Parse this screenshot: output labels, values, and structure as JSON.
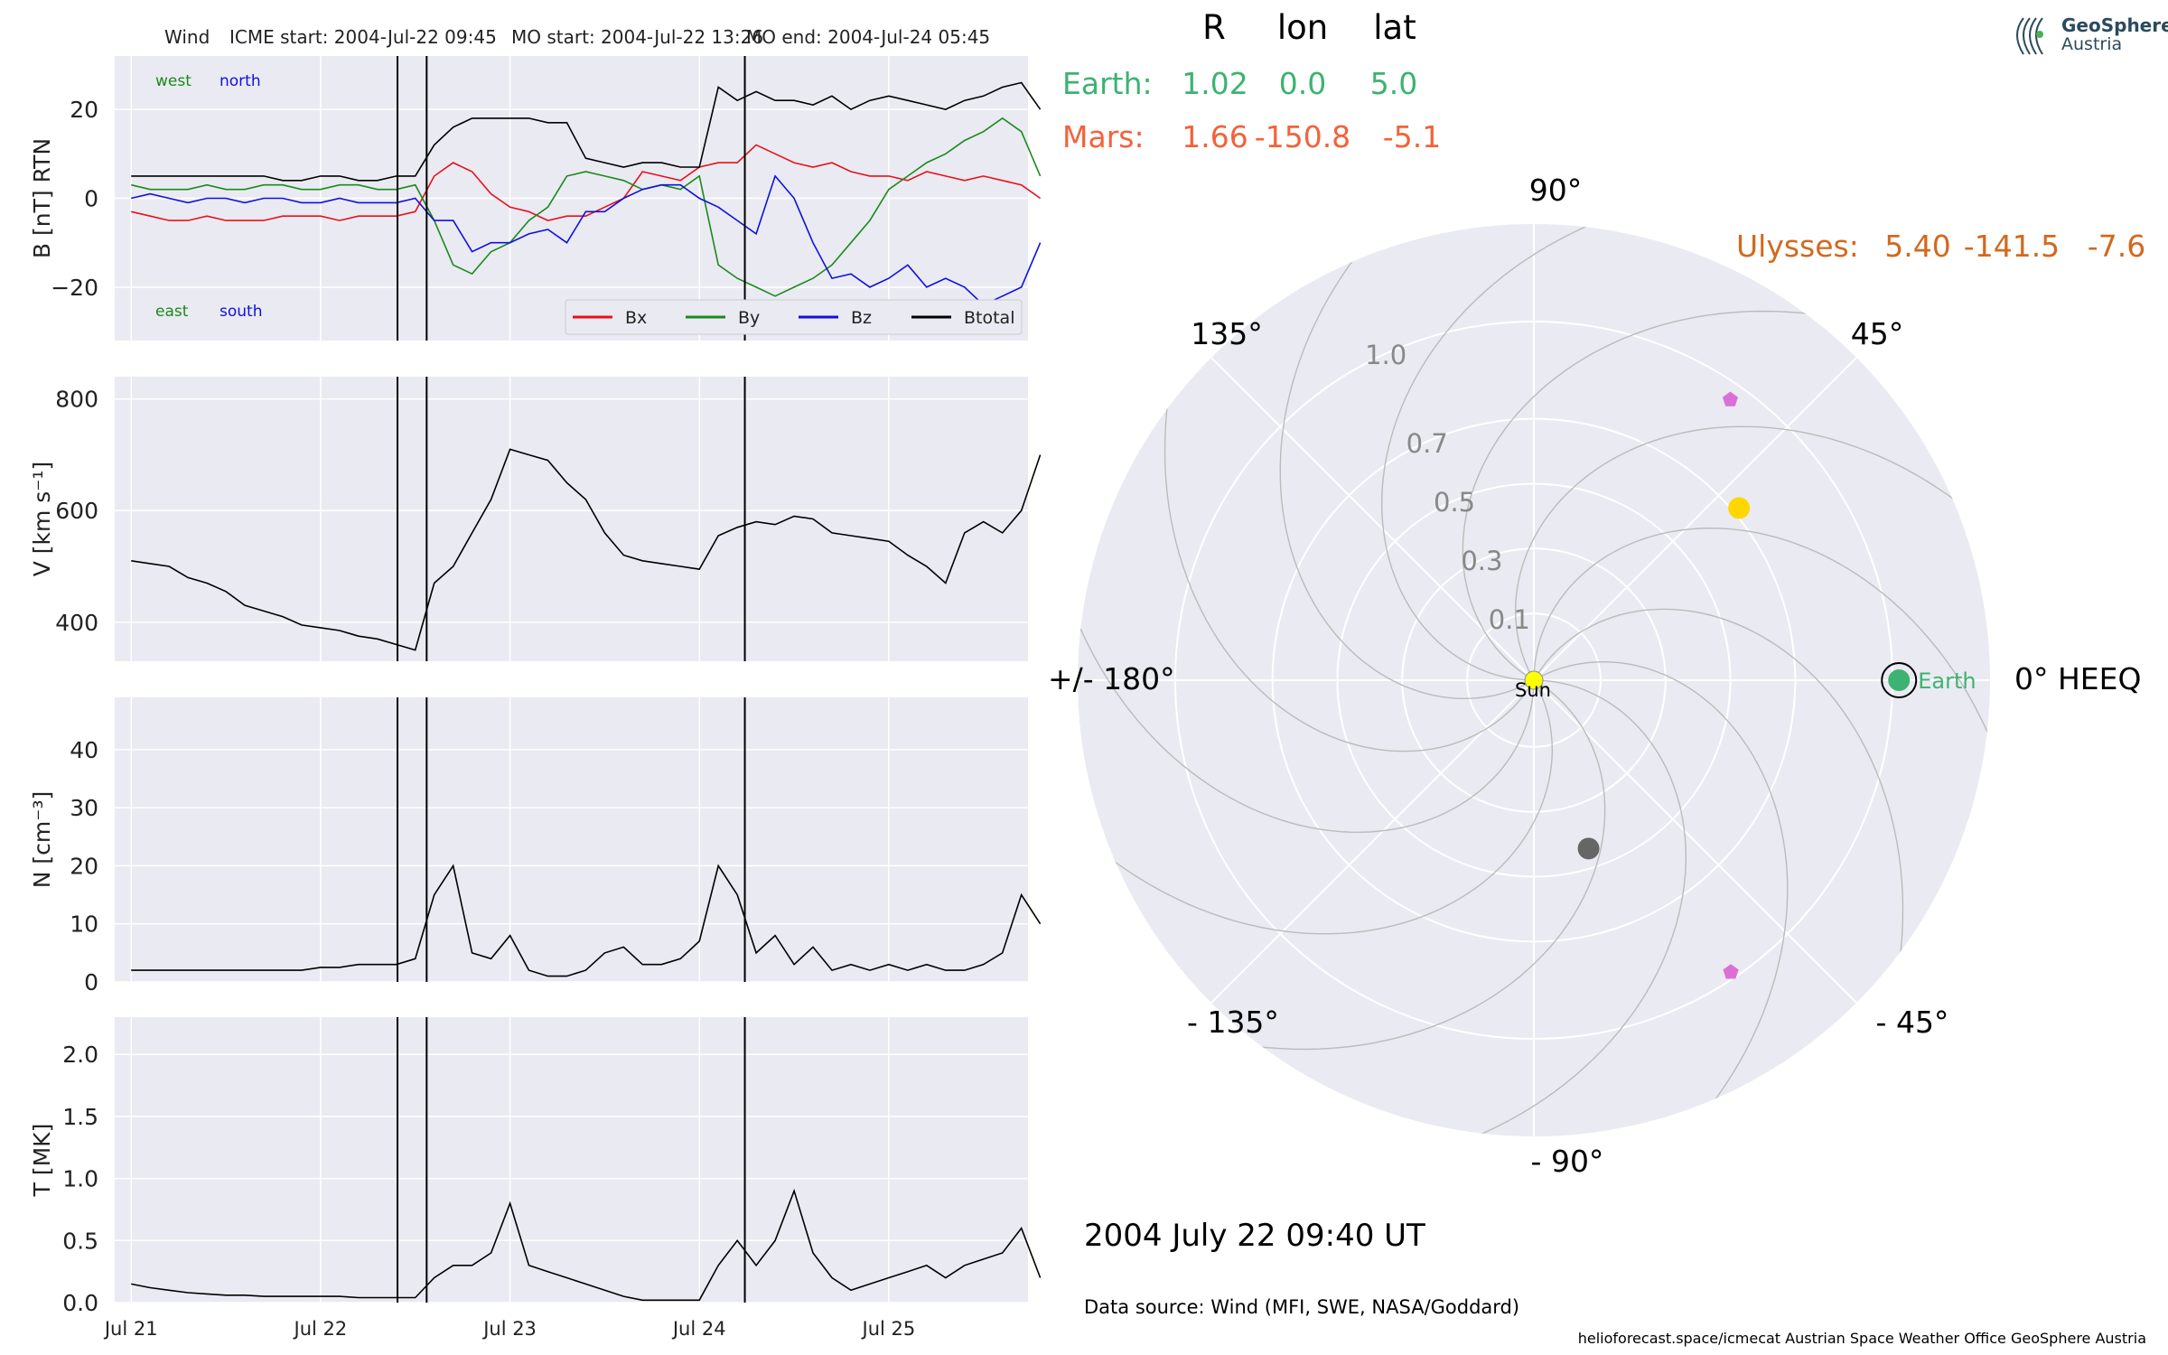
{
  "header": {
    "spacecraft": "Wind",
    "icme_start": "ICME start: 2004-Jul-22 09:45",
    "mo_start": "MO start: 2004-Jul-22 13:26",
    "mo_end": "MO end: 2004-Jul-24 05:45"
  },
  "logo": {
    "line1": "GeoSphere",
    "line2": "Austria",
    "icon": "geosphere-waves-icon"
  },
  "position_table": {
    "columns": [
      "R",
      "lon",
      "lat"
    ],
    "rows": [
      {
        "name": "Earth:",
        "R": "1.02",
        "lon": "0.0",
        "lat": "5.0",
        "color": "#3cb371"
      },
      {
        "name": "Mars:",
        "R": "1.66",
        "lon": "-150.8",
        "lat": "-5.1",
        "color": "#f4623a"
      },
      {
        "name": "Ulysses:",
        "R": "5.40",
        "lon": "-141.5",
        "lat": "-7.6",
        "color": "#d2691e"
      }
    ]
  },
  "date_label": "2004 July 22  09:40 UT",
  "data_source": "Data source: Wind (MFI, SWE, NASA/Goddard)",
  "footer": "helioforecast.space/icmecat   Austrian Space Weather Office   GeoSphere Austria",
  "chart_data": [
    {
      "type": "line",
      "ylabel": "B [nT] RTN",
      "ylim": [
        -32,
        32
      ],
      "yticks": [
        -20,
        0,
        20
      ],
      "ytick_labels": [
        "−20",
        "0",
        "20"
      ],
      "direction_labels": {
        "west": "west",
        "north": "north",
        "east": "east",
        "south": "south"
      },
      "legend": [
        "Bx",
        "By",
        "Bz",
        "Btotal"
      ],
      "legend_location": "lower-right",
      "x_days": [
        0,
        0.1,
        0.2,
        0.3,
        0.4,
        0.5,
        0.6,
        0.7,
        0.8,
        0.9,
        1.0,
        1.1,
        1.2,
        1.3,
        1.4,
        1.5,
        1.6,
        1.7,
        1.8,
        1.9,
        2.0,
        2.1,
        2.2,
        2.3,
        2.4,
        2.5,
        2.6,
        2.7,
        2.8,
        2.9,
        3.0,
        3.1,
        3.2,
        3.3,
        3.4,
        3.5,
        3.6,
        3.7,
        3.8,
        3.9,
        4.0,
        4.1,
        4.2,
        4.3,
        4.4,
        4.5,
        4.6,
        4.7,
        4.8
      ],
      "series": [
        {
          "name": "Bx",
          "color": "#e8111a",
          "values": [
            -3,
            -4,
            -5,
            -5,
            -4,
            -5,
            -5,
            -5,
            -4,
            -4,
            -4,
            -5,
            -4,
            -4,
            -4,
            -3,
            5,
            8,
            6,
            1,
            -2,
            -3,
            -5,
            -4,
            -4,
            -2,
            0,
            6,
            5,
            4,
            7,
            8,
            8,
            12,
            10,
            8,
            7,
            8,
            6,
            5,
            5,
            4,
            6,
            5,
            4,
            5,
            4,
            3,
            0
          ]
        },
        {
          "name": "By",
          "color": "#1a8a1a",
          "values": [
            3,
            2,
            2,
            2,
            3,
            2,
            2,
            3,
            3,
            2,
            2,
            3,
            3,
            2,
            2,
            3,
            -5,
            -15,
            -17,
            -12,
            -10,
            -5,
            -2,
            5,
            6,
            5,
            4,
            2,
            3,
            2,
            5,
            -15,
            -18,
            -20,
            -22,
            -20,
            -18,
            -15,
            -10,
            -5,
            2,
            5,
            8,
            10,
            13,
            15,
            18,
            15,
            5
          ]
        },
        {
          "name": "Bz",
          "color": "#1010e0",
          "values": [
            0,
            1,
            0,
            -1,
            0,
            0,
            -1,
            0,
            0,
            -1,
            -1,
            0,
            -1,
            -1,
            -1,
            0,
            -5,
            -5,
            -12,
            -10,
            -10,
            -8,
            -7,
            -10,
            -3,
            -3,
            0,
            2,
            3,
            3,
            0,
            -2,
            -5,
            -8,
            5,
            0,
            -10,
            -18,
            -17,
            -20,
            -18,
            -15,
            -20,
            -18,
            -20,
            -24,
            -22,
            -20,
            -10
          ]
        },
        {
          "name": "Btotal",
          "color": "#000000",
          "values": [
            5,
            5,
            5,
            5,
            5,
            5,
            5,
            5,
            4,
            4,
            5,
            5,
            4,
            4,
            5,
            5,
            12,
            16,
            18,
            18,
            18,
            18,
            17,
            17,
            9,
            8,
            7,
            8,
            8,
            7,
            7,
            25,
            22,
            24,
            22,
            22,
            21,
            23,
            20,
            22,
            23,
            22,
            21,
            20,
            22,
            23,
            25,
            26,
            20
          ]
        }
      ]
    },
    {
      "type": "line",
      "ylabel": "V [km s⁻¹]",
      "ylim": [
        330,
        840
      ],
      "yticks": [
        400,
        600,
        800
      ],
      "x_days": [
        0,
        0.1,
        0.2,
        0.3,
        0.4,
        0.5,
        0.6,
        0.7,
        0.8,
        0.9,
        1.0,
        1.1,
        1.2,
        1.3,
        1.4,
        1.5,
        1.6,
        1.7,
        1.8,
        1.9,
        2.0,
        2.1,
        2.2,
        2.3,
        2.4,
        2.5,
        2.6,
        2.7,
        2.8,
        2.9,
        3.0,
        3.1,
        3.2,
        3.3,
        3.4,
        3.5,
        3.6,
        3.7,
        3.8,
        3.9,
        4.0,
        4.1,
        4.2,
        4.3,
        4.4,
        4.5,
        4.6,
        4.7,
        4.8
      ],
      "series": [
        {
          "name": "V",
          "color": "#000000",
          "values": [
            510,
            505,
            500,
            480,
            470,
            455,
            430,
            420,
            410,
            395,
            390,
            385,
            375,
            370,
            360,
            350,
            470,
            500,
            560,
            620,
            710,
            700,
            690,
            650,
            620,
            560,
            520,
            510,
            505,
            500,
            495,
            555,
            570,
            580,
            575,
            590,
            585,
            560,
            555,
            550,
            545,
            520,
            500,
            470,
            560,
            580,
            560,
            600,
            700
          ]
        }
      ]
    },
    {
      "type": "line",
      "ylabel": "N [cm⁻³]",
      "ylim": [
        0,
        49
      ],
      "yticks": [
        0,
        10,
        20,
        30,
        40
      ],
      "x_days": [
        0,
        0.1,
        0.2,
        0.3,
        0.4,
        0.5,
        0.6,
        0.7,
        0.8,
        0.9,
        1.0,
        1.1,
        1.2,
        1.3,
        1.4,
        1.5,
        1.6,
        1.7,
        1.8,
        1.9,
        2.0,
        2.1,
        2.2,
        2.3,
        2.4,
        2.5,
        2.6,
        2.7,
        2.8,
        2.9,
        3.0,
        3.1,
        3.2,
        3.3,
        3.4,
        3.5,
        3.6,
        3.7,
        3.8,
        3.9,
        4.0,
        4.1,
        4.2,
        4.3,
        4.4,
        4.5,
        4.6,
        4.7,
        4.8
      ],
      "series": [
        {
          "name": "N",
          "color": "#000000",
          "values": [
            2,
            2,
            2,
            2,
            2,
            2,
            2,
            2,
            2,
            2,
            2.5,
            2.5,
            3,
            3,
            3,
            4,
            15,
            20,
            5,
            4,
            8,
            2,
            1,
            1,
            2,
            5,
            6,
            3,
            3,
            4,
            7,
            20,
            15,
            5,
            8,
            3,
            6,
            2,
            3,
            2,
            3,
            2,
            3,
            2,
            2,
            3,
            5,
            15,
            10
          ]
        }
      ]
    },
    {
      "type": "line",
      "ylabel": "T [MK]",
      "ylim": [
        0,
        2.3
      ],
      "yticks": [
        0.0,
        0.5,
        1.0,
        1.5,
        2.0
      ],
      "ytick_labels": [
        "0.0",
        "0.5",
        "1.0",
        "1.5",
        "2.0"
      ],
      "xticks": [
        0,
        1,
        2,
        3,
        4
      ],
      "xtick_labels": [
        "Jul 21",
        "Jul 22",
        "Jul 23",
        "Jul 24",
        "Jul 25"
      ],
      "x_days": [
        0,
        0.1,
        0.2,
        0.3,
        0.4,
        0.5,
        0.6,
        0.7,
        0.8,
        0.9,
        1.0,
        1.1,
        1.2,
        1.3,
        1.4,
        1.5,
        1.6,
        1.7,
        1.8,
        1.9,
        2.0,
        2.1,
        2.2,
        2.3,
        2.4,
        2.5,
        2.6,
        2.7,
        2.8,
        2.9,
        3.0,
        3.1,
        3.2,
        3.3,
        3.4,
        3.5,
        3.6,
        3.7,
        3.8,
        3.9,
        4.0,
        4.1,
        4.2,
        4.3,
        4.4,
        4.5,
        4.6,
        4.7,
        4.8
      ],
      "series": [
        {
          "name": "T",
          "color": "#000000",
          "values": [
            0.15,
            0.12,
            0.1,
            0.08,
            0.07,
            0.06,
            0.06,
            0.05,
            0.05,
            0.05,
            0.05,
            0.05,
            0.04,
            0.04,
            0.04,
            0.04,
            0.2,
            0.3,
            0.3,
            0.4,
            0.8,
            0.3,
            0.25,
            0.2,
            0.15,
            0.1,
            0.05,
            0.02,
            0.02,
            0.02,
            0.02,
            0.3,
            0.5,
            0.3,
            0.5,
            0.9,
            0.4,
            0.2,
            0.1,
            0.15,
            0.2,
            0.25,
            0.3,
            0.2,
            0.3,
            0.35,
            0.4,
            0.6,
            0.2
          ]
        }
      ]
    },
    {
      "type": "scatter",
      "projection": "polar",
      "radial_tick_labels": [
        "0.1",
        "0.3",
        "0.5",
        "0.7",
        "1.0"
      ],
      "angle_labels": [
        "0° HEEQ",
        "45°",
        "90°",
        "135°",
        "+/- 180°",
        "- 135°",
        "- 90°",
        "- 45°"
      ],
      "objects": [
        {
          "name": "Earth",
          "lon_deg": 0.0,
          "r_au": 1.02,
          "color": "#3cb371",
          "label": "Earth"
        },
        {
          "name": "Sun",
          "lon_deg": 0,
          "r_au": 0,
          "color": "#ffff00",
          "label": "Sun"
        },
        {
          "name": "Venus",
          "lon_deg": 40,
          "r_au": 0.72,
          "color": "#ffd700"
        },
        {
          "name": "Mercury",
          "lon_deg": -72,
          "r_au": 0.44,
          "color": "#666666"
        },
        {
          "name": "STEREO-A",
          "lon_deg": 55,
          "r_au": 0.95,
          "color": "#da70d6"
        },
        {
          "name": "STEREO-B",
          "lon_deg": -56,
          "r_au": 0.98,
          "color": "#da70d6"
        }
      ]
    }
  ],
  "event_lines_days": [
    1.406,
    1.56,
    3.24
  ]
}
